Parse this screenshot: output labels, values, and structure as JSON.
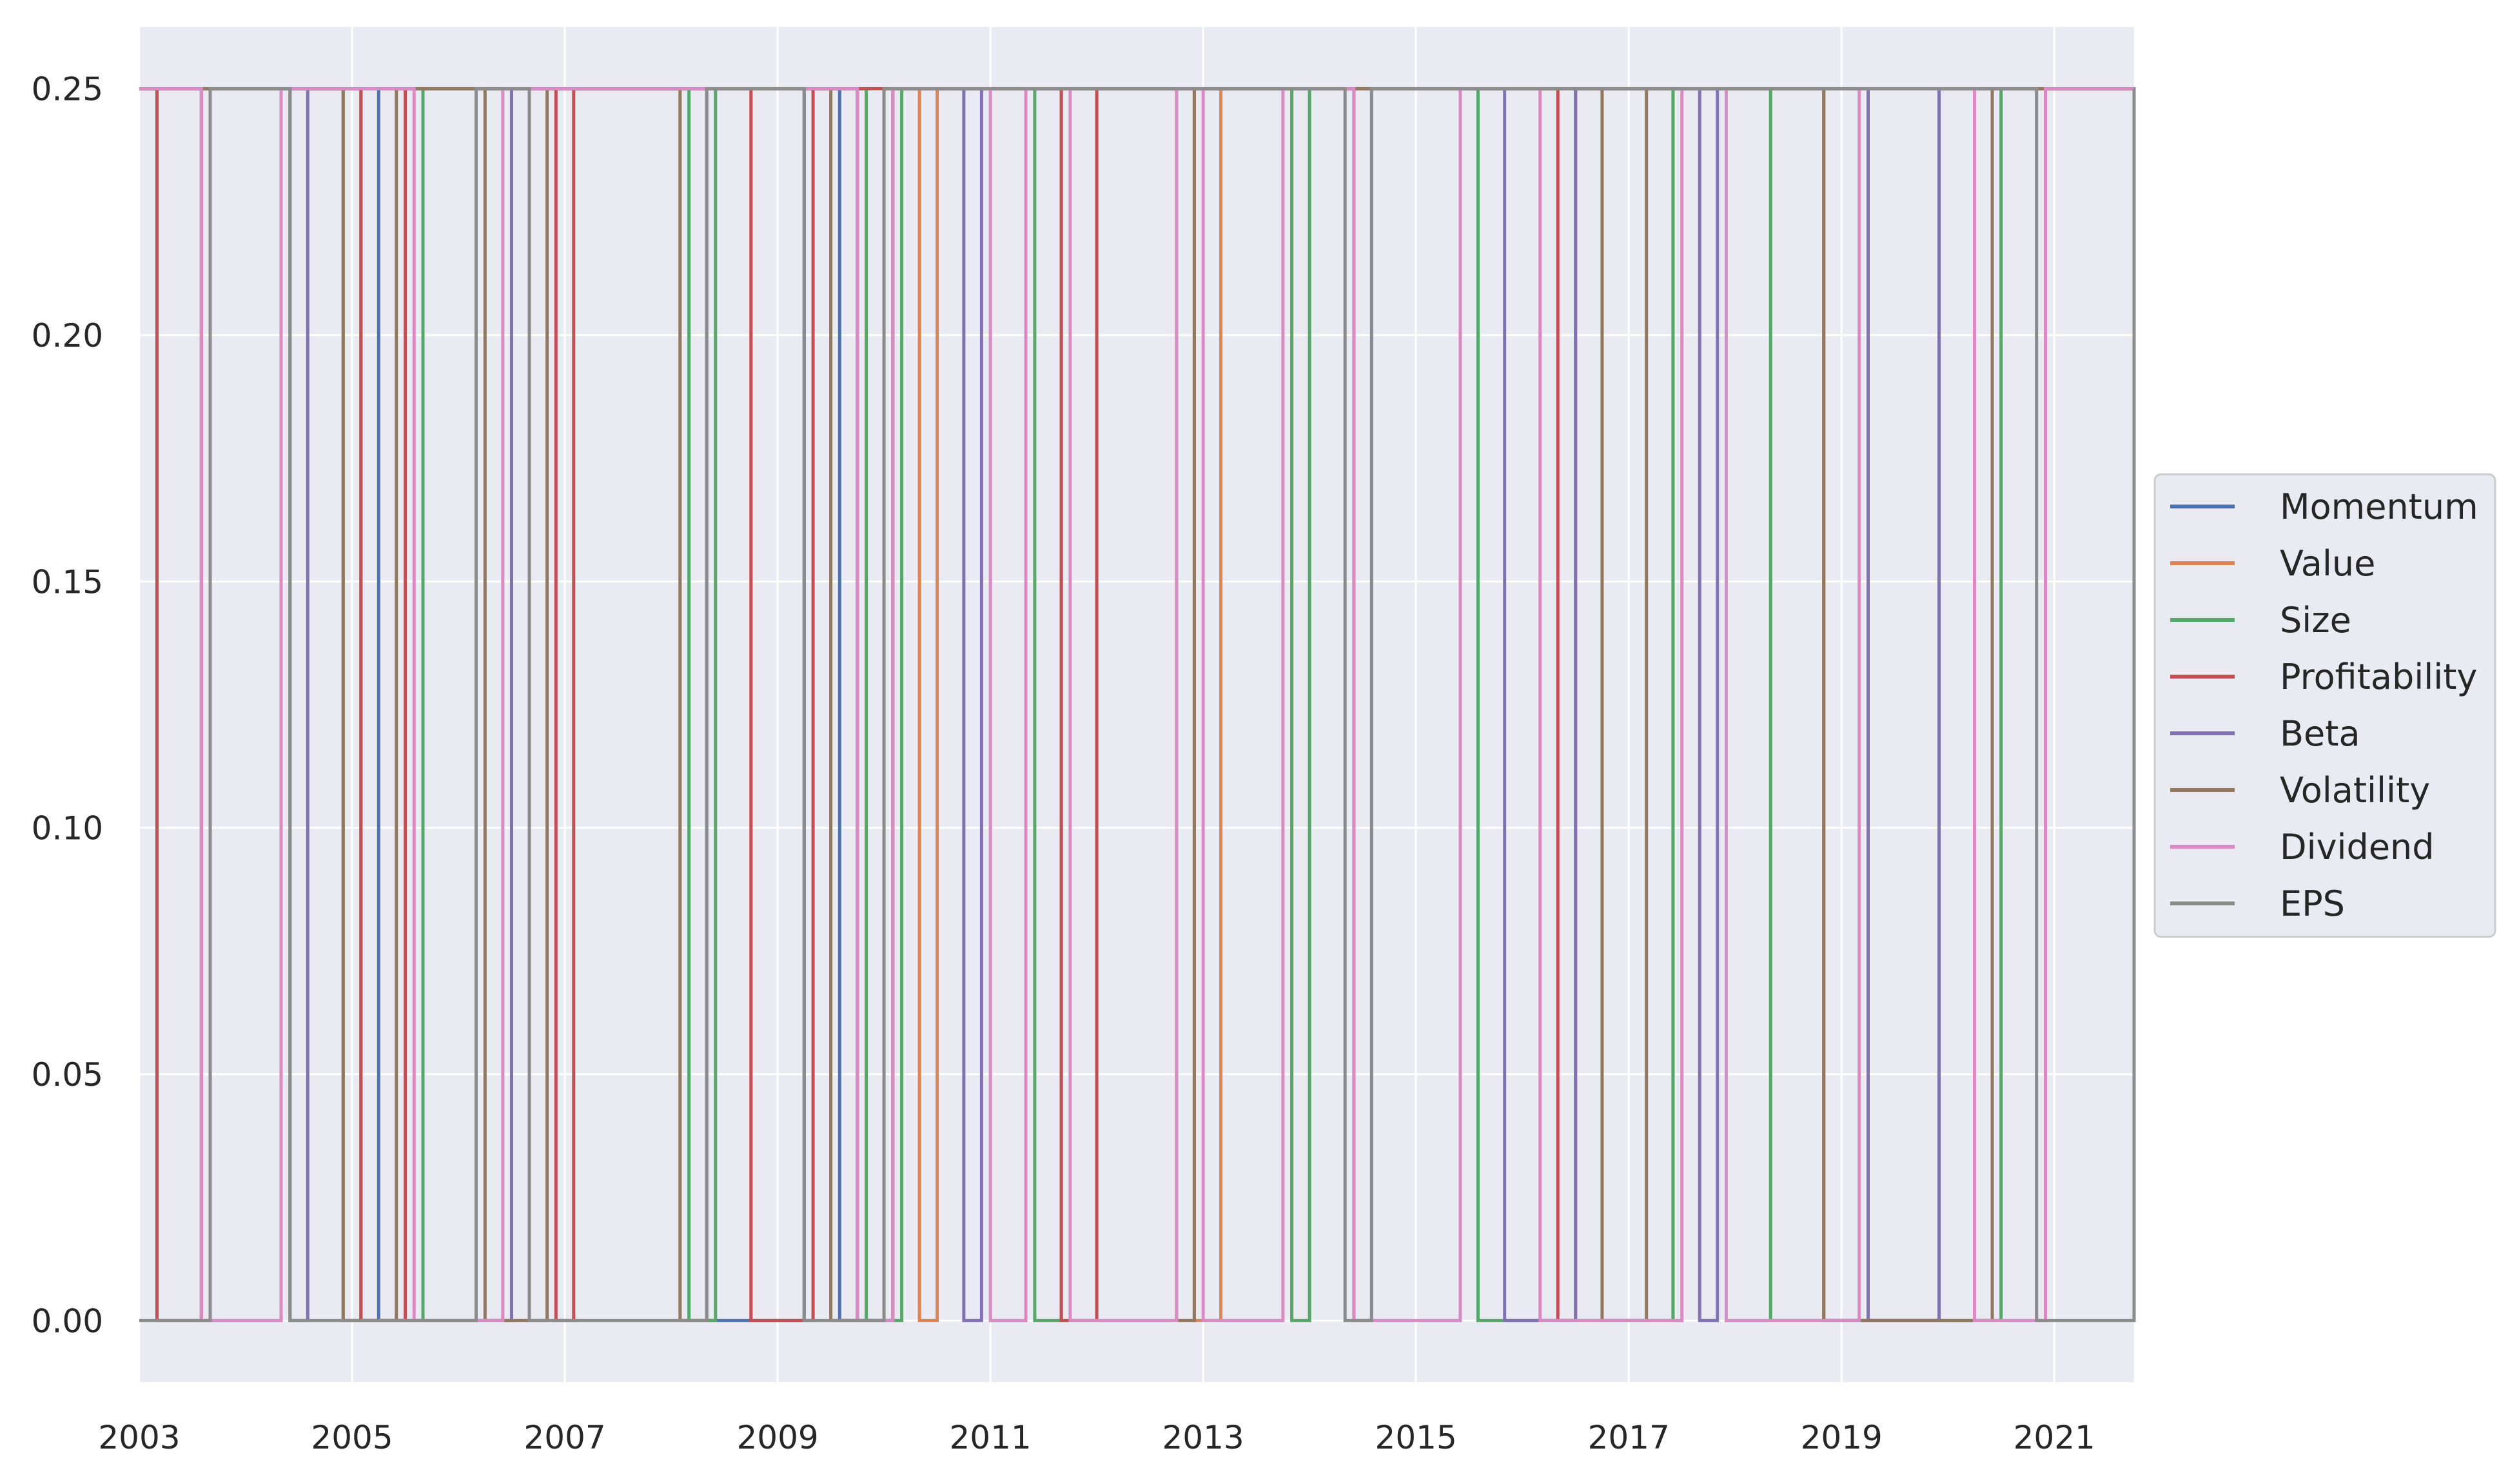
{
  "chart_data": {
    "type": "line",
    "title": "",
    "xlabel": "",
    "ylabel": "",
    "x_range": [
      "2003-01",
      "2021-10"
    ],
    "ylim": [
      -0.0125,
      0.2625
    ],
    "grid": true,
    "legend_position": "right",
    "x_ticks": [
      "2003",
      "2005",
      "2007",
      "2009",
      "2011",
      "2013",
      "2015",
      "2017",
      "2019",
      "2021"
    ],
    "y_ticks": [
      "0.00",
      "0.05",
      "0.10",
      "0.15",
      "0.20",
      "0.25"
    ],
    "value_levels": [
      0.0,
      0.25
    ],
    "series": [
      {
        "name": "Momentum",
        "color": "#4c72b0",
        "segments": [
          [
            "2003-01",
            "2005-01",
            0.25
          ],
          [
            "2005-02",
            "2005-03",
            0.0
          ],
          [
            "2005-04",
            "2008-04",
            0.25
          ],
          [
            "2008-05",
            "2009-03",
            0.0
          ],
          [
            "2009-04",
            "2009-07",
            0.25
          ],
          [
            "2009-08",
            "2009-09",
            0.0
          ],
          [
            "2009-10",
            "2021-10",
            0.25
          ]
        ]
      },
      {
        "name": "Value",
        "color": "#dd8452",
        "segments": [
          [
            "2003-01",
            "2010-04",
            0.25
          ],
          [
            "2010-05",
            "2010-06",
            0.0
          ],
          [
            "2010-07",
            "2012-11",
            0.25
          ],
          [
            "2012-12",
            "2013-02",
            0.0
          ],
          [
            "2013-03",
            "2013-04",
            0.25
          ],
          [
            "2013-05",
            "2021-10",
            0.25
          ]
        ]
      },
      {
        "name": "Size",
        "color": "#55a868",
        "segments": [
          [
            "2003-01",
            "2004-11",
            0.25
          ],
          [
            "2004-12",
            "2005-08",
            0.0
          ],
          [
            "2005-09",
            "2008-02",
            0.25
          ],
          [
            "2008-03",
            "2008-05",
            0.0
          ],
          [
            "2008-06",
            "2009-10",
            0.25
          ],
          [
            "2009-11",
            "2010-02",
            0.0
          ],
          [
            "2010-03",
            "2011-05",
            0.25
          ],
          [
            "2011-06",
            "2011-08",
            0.0
          ],
          [
            "2011-09",
            "2013-10",
            0.25
          ],
          [
            "2013-11",
            "2013-12",
            0.0
          ],
          [
            "2014-01",
            "2015-07",
            0.25
          ],
          [
            "2015-08",
            "2017-05",
            0.0
          ],
          [
            "2017-06",
            "2018-04",
            0.25
          ],
          [
            "2018-05",
            "2020-06",
            0.0
          ],
          [
            "2020-07",
            "2021-10",
            0.25
          ]
        ]
      },
      {
        "name": "Profitability",
        "color": "#c44e52",
        "segments": [
          [
            "2003-01",
            "2003-02",
            0.25
          ],
          [
            "2003-03",
            "2003-07",
            0.0
          ],
          [
            "2003-08",
            "2005-01",
            0.25
          ],
          [
            "2005-02",
            "2005-06",
            0.0
          ],
          [
            "2005-07",
            "2006-11",
            0.25
          ],
          [
            "2006-12",
            "2007-01",
            0.0
          ],
          [
            "2007-02",
            "2008-09",
            0.25
          ],
          [
            "2008-10",
            "2009-04",
            0.0
          ],
          [
            "2009-05",
            "2011-08",
            0.25
          ],
          [
            "2011-09",
            "2011-12",
            0.0
          ],
          [
            "2012-01",
            "2016-04",
            0.25
          ],
          [
            "2016-05",
            "2016-06",
            0.0
          ],
          [
            "2016-07",
            "2018-10",
            0.25
          ],
          [
            "2018-11",
            "2019-11",
            0.0
          ],
          [
            "2019-12",
            "2020-11",
            0.25
          ],
          [
            "2020-12",
            "2021-10",
            0.25
          ]
        ]
      },
      {
        "name": "Beta",
        "color": "#8172b3",
        "segments": [
          [
            "2003-01",
            "2004-05",
            0.25
          ],
          [
            "2004-06",
            "2004-07",
            0.0
          ],
          [
            "2004-08",
            "2006-02",
            0.25
          ],
          [
            "2006-03",
            "2006-06",
            0.0
          ],
          [
            "2006-07",
            "2009-09",
            0.25
          ],
          [
            "2009-10",
            "2010-01",
            0.0
          ],
          [
            "2010-02",
            "2010-09",
            0.25
          ],
          [
            "2010-10",
            "2010-11",
            0.0
          ],
          [
            "2010-12",
            "2014-05",
            0.25
          ],
          [
            "2014-06",
            "2014-07",
            0.0
          ],
          [
            "2014-08",
            "2015-10",
            0.25
          ],
          [
            "2015-11",
            "2016-06",
            0.0
          ],
          [
            "2016-07",
            "2017-08",
            0.25
          ],
          [
            "2017-09",
            "2017-10",
            0.0
          ],
          [
            "2017-11",
            "2019-03",
            0.25
          ],
          [
            "2019-04",
            "2019-11",
            0.0
          ],
          [
            "2019-12",
            "2021-09",
            0.25
          ],
          [
            "2021-10",
            "2021-10",
            0.0
          ]
        ]
      },
      {
        "name": "Volatility",
        "color": "#937860",
        "segments": [
          [
            "2003-01",
            "2004-11",
            0.25
          ],
          [
            "2004-12",
            "2005-05",
            0.0
          ],
          [
            "2005-06",
            "2006-03",
            0.25
          ],
          [
            "2006-04",
            "2006-10",
            0.0
          ],
          [
            "2006-11",
            "2008-01",
            0.25
          ],
          [
            "2008-02",
            "2008-04",
            0.0
          ],
          [
            "2008-05",
            "2009-06",
            0.25
          ],
          [
            "2009-07",
            "2010-01",
            0.0
          ],
          [
            "2010-02",
            "2012-09",
            0.25
          ],
          [
            "2012-10",
            "2012-11",
            0.0
          ],
          [
            "2012-12",
            "2016-09",
            0.25
          ],
          [
            "2016-10",
            "2017-02",
            0.0
          ],
          [
            "2017-03",
            "2018-10",
            0.25
          ],
          [
            "2018-11",
            "2020-05",
            0.0
          ],
          [
            "2020-06",
            "2021-10",
            0.25
          ]
        ]
      },
      {
        "name": "Dividend",
        "color": "#da8bc3",
        "segments": [
          [
            "2003-01",
            "2003-07",
            0.25
          ],
          [
            "2003-08",
            "2004-04",
            0.0
          ],
          [
            "2004-05",
            "2005-07",
            0.25
          ],
          [
            "2005-08",
            "2006-05",
            0.0
          ],
          [
            "2006-06",
            "2009-09",
            0.25
          ],
          [
            "2009-10",
            "2010-01",
            0.0
          ],
          [
            "2010-02",
            "2010-12",
            0.25
          ],
          [
            "2011-01",
            "2011-04",
            0.0
          ],
          [
            "2011-05",
            "2011-09",
            0.25
          ],
          [
            "2011-10",
            "2012-09",
            0.0
          ],
          [
            "2012-10",
            "2012-12",
            0.25
          ],
          [
            "2013-01",
            "2013-09",
            0.0
          ],
          [
            "2013-10",
            "2014-05",
            0.25
          ],
          [
            "2014-06",
            "2015-05",
            0.0
          ],
          [
            "2015-06",
            "2016-02",
            0.25
          ],
          [
            "2016-03",
            "2017-06",
            0.0
          ],
          [
            "2017-07",
            "2017-11",
            0.25
          ],
          [
            "2017-12",
            "2019-02",
            0.0
          ],
          [
            "2019-03",
            "2020-03",
            0.25
          ],
          [
            "2020-04",
            "2020-11",
            0.0
          ],
          [
            "2020-12",
            "2021-10",
            0.25
          ]
        ]
      },
      {
        "name": "EPS",
        "color": "#8c8c8c",
        "segments": [
          [
            "2003-01",
            "2003-08",
            0.0
          ],
          [
            "2003-09",
            "2004-05",
            0.25
          ],
          [
            "2004-06",
            "2006-02",
            0.0
          ],
          [
            "2006-03",
            "2006-08",
            0.25
          ],
          [
            "2006-09",
            "2008-04",
            0.0
          ],
          [
            "2008-05",
            "2009-03",
            0.25
          ],
          [
            "2009-04",
            "2009-12",
            0.0
          ],
          [
            "2010-01",
            "2014-04",
            0.25
          ],
          [
            "2014-05",
            "2014-07",
            0.0
          ],
          [
            "2014-08",
            "2020-10",
            0.25
          ],
          [
            "2020-11",
            "2021-09",
            0.0
          ],
          [
            "2021-10",
            "2021-10",
            0.25
          ]
        ]
      }
    ]
  }
}
